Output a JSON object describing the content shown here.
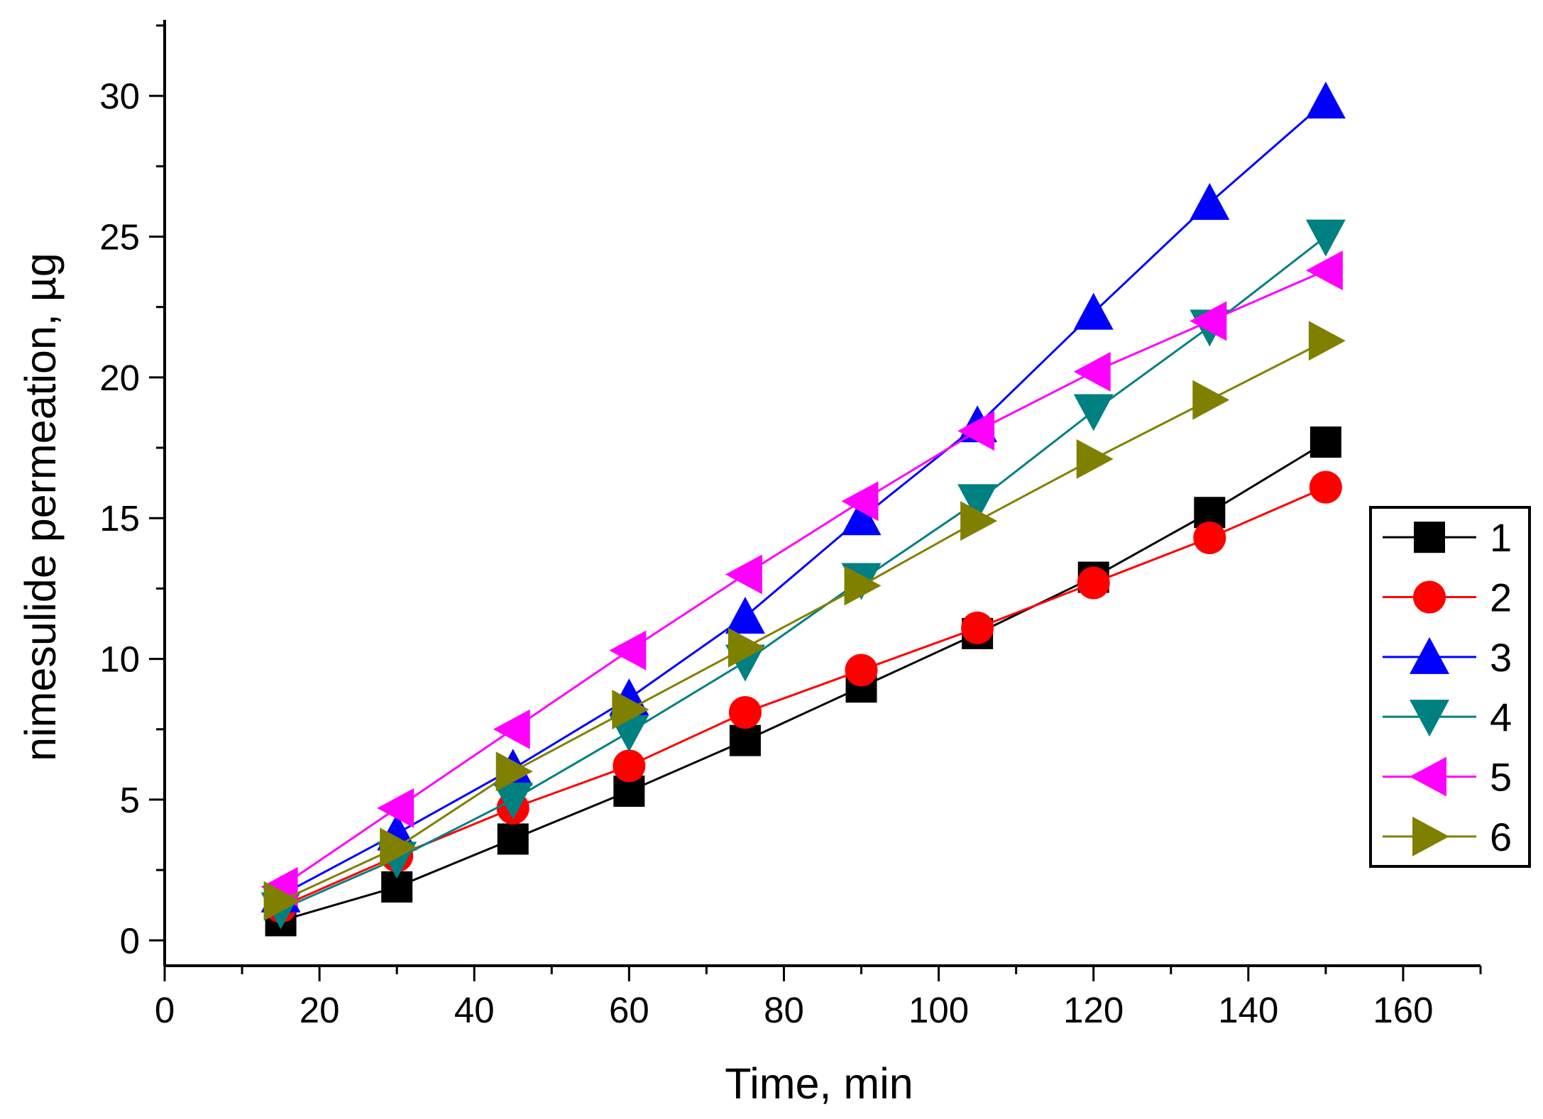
{
  "chart_data": {
    "type": "line",
    "title": "",
    "xlabel": "Time, min",
    "ylabel": "nimesulide permeation, µg",
    "xlim": [
      0,
      170
    ],
    "ylim": [
      -0.9,
      32.7
    ],
    "x_ticks": [
      0,
      20,
      40,
      60,
      80,
      100,
      120,
      140,
      160
    ],
    "y_ticks": [
      0,
      5,
      10,
      15,
      20,
      25,
      30
    ],
    "grid": false,
    "legend_position": "right",
    "x": [
      15,
      30,
      45,
      60,
      75,
      90,
      105,
      120,
      135,
      150
    ],
    "series": [
      {
        "name": "1",
        "color": "#000000",
        "marker": "square",
        "values": [
          0.7,
          1.9,
          3.6,
          5.3,
          7.1,
          9.0,
          10.9,
          12.9,
          15.2,
          17.7
        ]
      },
      {
        "name": "2",
        "color": "#ff0000",
        "marker": "circle",
        "values": [
          1.2,
          3.0,
          4.7,
          6.2,
          8.1,
          9.6,
          11.1,
          12.7,
          14.3,
          16.1
        ]
      },
      {
        "name": "3",
        "color": "#0000ff",
        "marker": "triangle-up",
        "values": [
          1.6,
          3.8,
          6.1,
          8.6,
          11.5,
          15.0,
          18.3,
          22.3,
          26.2,
          29.8
        ]
      },
      {
        "name": "4",
        "color": "#008080",
        "marker": "triangle-down",
        "values": [
          1.1,
          2.9,
          5.0,
          7.4,
          9.9,
          12.8,
          15.6,
          18.8,
          21.8,
          25.0
        ]
      },
      {
        "name": "5",
        "color": "#ff00ff",
        "marker": "triangle-left",
        "values": [
          1.9,
          4.7,
          7.5,
          10.3,
          13.0,
          15.6,
          18.1,
          20.2,
          22.0,
          23.8
        ]
      },
      {
        "name": "6",
        "color": "#808000",
        "marker": "triangle-right",
        "values": [
          1.4,
          3.3,
          6.0,
          8.2,
          10.4,
          12.6,
          14.9,
          17.1,
          19.2,
          21.3
        ]
      }
    ]
  }
}
